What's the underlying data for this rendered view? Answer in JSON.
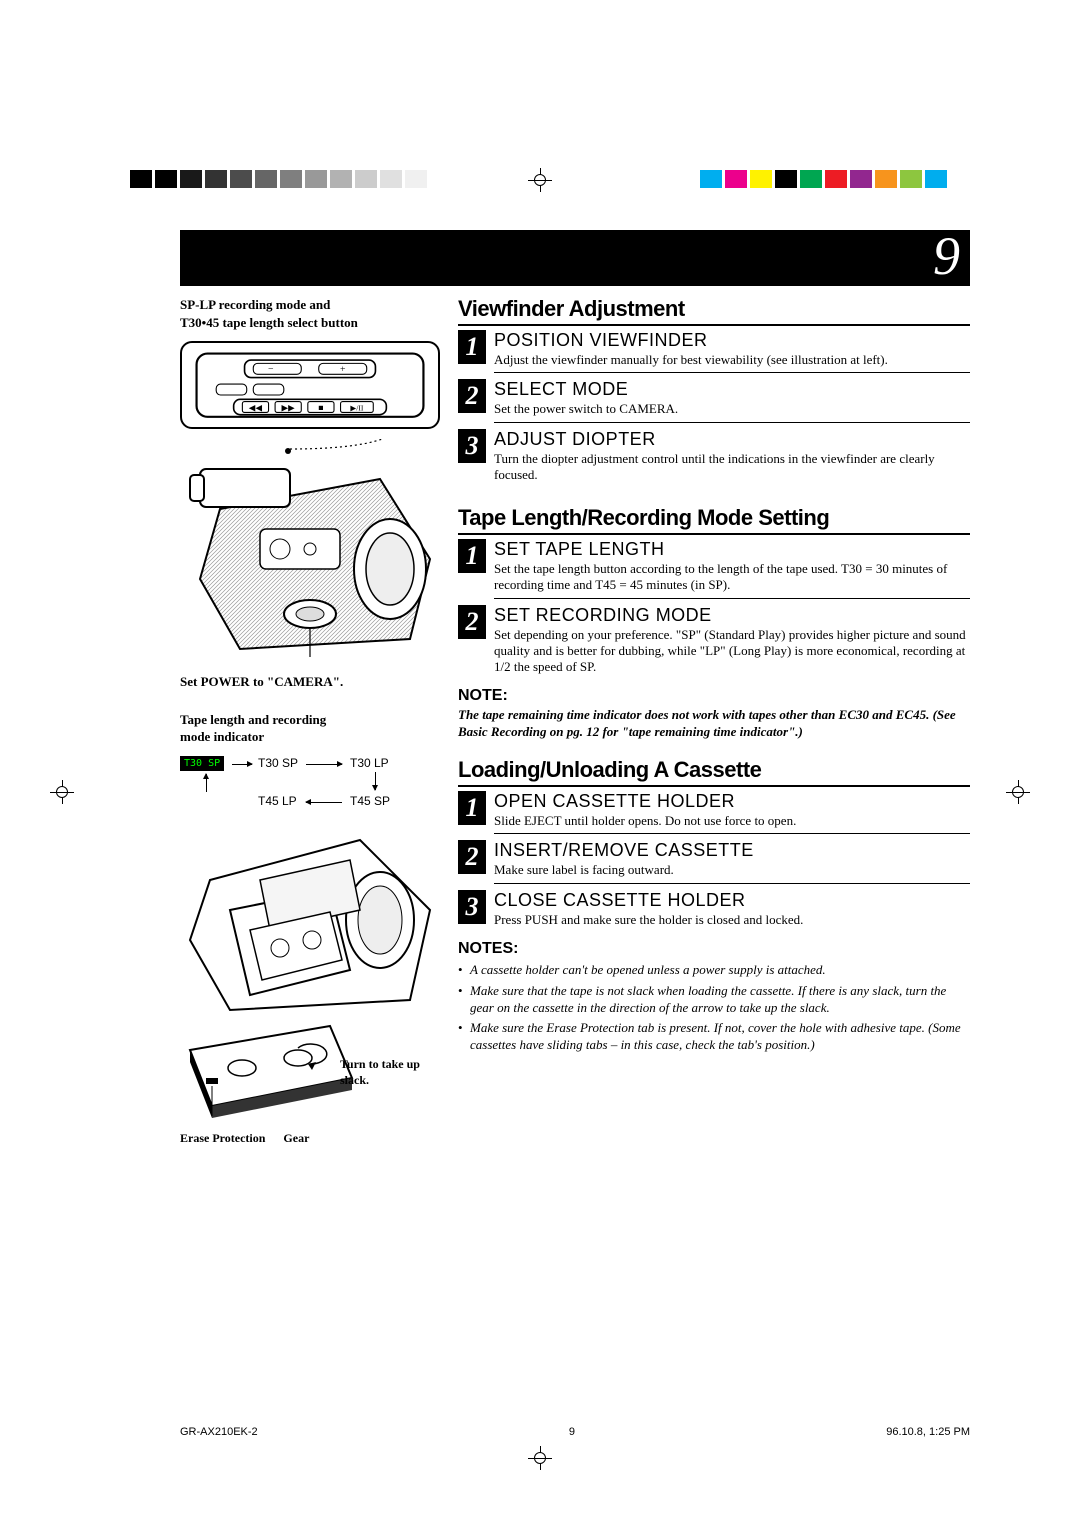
{
  "page_number": "9",
  "colorbar": {
    "left_opacities": [
      1,
      1,
      0.9,
      0.8,
      0.7,
      0.6,
      0.5,
      0.4,
      0.3,
      0.2,
      0.12,
      0.06
    ],
    "right_colors": [
      "#00aeef",
      "#ec008c",
      "#fff200",
      "#000000",
      "#00a651",
      "#ed1c24",
      "#92278f",
      "#f7941d",
      "#8dc63f",
      "#00adee"
    ]
  },
  "left": {
    "caption_top_line1": "SP-LP recording mode and",
    "caption_top_line2": "T30•45 tape length select button",
    "caption_power": "Set POWER to \"CAMERA\".",
    "caption_indicator_line1": "Tape length and recording",
    "caption_indicator_line2": "mode indicator",
    "mode_t30sp_box": "T30 SP",
    "mode_t30sp": "T30 SP",
    "mode_t30lp": "T30 LP",
    "mode_t45lp": "T45 LP",
    "mode_t45sp": "T45 SP",
    "caption_turn_line1": "Turn to take up",
    "caption_turn_line2": "slack.",
    "caption_erase": "Erase Protection",
    "caption_gear": "Gear"
  },
  "sections": {
    "viewfinder": {
      "title": "Viewfinder Adjustment",
      "steps": [
        {
          "num": "1",
          "head": "POSITION VIEWFINDER",
          "text": "Adjust the viewfinder manually for best viewability (see illustration at left)."
        },
        {
          "num": "2",
          "head": "SELECT MODE",
          "text": "Set the power switch to CAMERA."
        },
        {
          "num": "3",
          "head": "ADJUST DIOPTER",
          "text": "Turn the diopter adjustment control until the indications in the viewfinder are clearly focused."
        }
      ]
    },
    "tape": {
      "title": "Tape Length/Recording Mode Setting",
      "steps": [
        {
          "num": "1",
          "head": "SET TAPE LENGTH",
          "text": "Set the tape length button according to the length of the tape used. T30 = 30 minutes of recording time and T45 = 45 minutes (in SP)."
        },
        {
          "num": "2",
          "head": "SET RECORDING MODE",
          "text": "Set depending on your preference. \"SP\" (Standard Play) provides higher picture and sound quality and is better for dubbing, while \"LP\" (Long Play) is more economical, recording at 1/2 the speed of SP."
        }
      ],
      "note_label": "NOTE:",
      "note_text": "The tape remaining time indicator does not work with tapes other than EC30 and EC45. (See Basic Recording on pg. 12 for \"tape remaining time indicator\".)"
    },
    "cassette": {
      "title": "Loading/Unloading A Cassette",
      "steps": [
        {
          "num": "1",
          "head": "OPEN CASSETTE HOLDER",
          "text": "Slide EJECT until holder opens. Do not use force to open."
        },
        {
          "num": "2",
          "head": "INSERT/REMOVE CASSETTE",
          "text": "Make sure label is facing outward."
        },
        {
          "num": "3",
          "head": "CLOSE CASSETTE HOLDER",
          "text": "Press PUSH and make sure the holder is closed and locked."
        }
      ],
      "notes_label": "NOTES:",
      "notes": [
        "A cassette holder can't be opened unless a power supply is attached.",
        "Make sure that the tape is not slack when loading the cassette. If there is any slack, turn the gear on the cassette in the direction of the arrow to take up the slack.",
        "Make sure the Erase Protection tab is present. If not, cover the hole with adhesive tape. (Some cassettes have sliding tabs – in this case, check the tab's position.)"
      ]
    }
  },
  "footer": {
    "doc_id": "GR-AX210EK-2",
    "page": "9",
    "timestamp": "96.10.8, 1:25 PM"
  }
}
